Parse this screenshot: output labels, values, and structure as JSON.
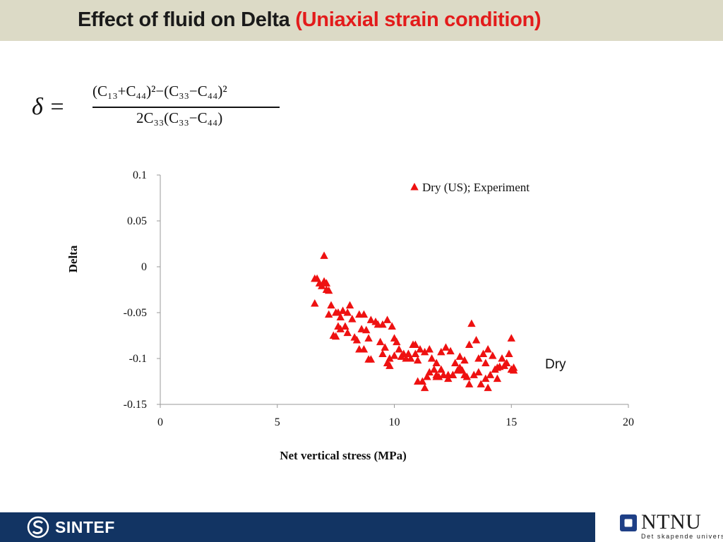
{
  "title": {
    "main": "Effect of fluid on Delta",
    "highlight": "(Uniaxial strain condition)"
  },
  "formula": {
    "lhs": "δ =",
    "numerator": "(C₁₃+C₄₄)²−(C₃₃−C₄₄)²",
    "denominator": "2C₃₃(C₃₃−C₄₄)"
  },
  "chart_data": {
    "type": "scatter",
    "title": "",
    "xlabel": "Net vertical stress (MPa)",
    "ylabel": "Delta",
    "xlim": [
      0,
      20
    ],
    "ylim": [
      -0.15,
      0.1
    ],
    "xticks": [
      0,
      5,
      10,
      15,
      20
    ],
    "xtick_labels": [
      "0",
      "5",
      "10",
      "15",
      "20"
    ],
    "yticks": [
      0.1,
      0.05,
      0,
      -0.05,
      -0.1,
      -0.15
    ],
    "ytick_labels": [
      "0.1",
      "0.05",
      "0",
      "-0.05",
      "-0.1",
      "-0.15"
    ],
    "grid": false,
    "legend_position": "top-right",
    "marker": "triangle",
    "marker_color": "#ee1111",
    "annotation": "Dry",
    "series": [
      {
        "name": "Dry (US); Experiment",
        "x": [
          6.6,
          6.7,
          6.8,
          6.9,
          7.0,
          7.0,
          7.1,
          7.2,
          7.1,
          7.3,
          7.6,
          6.6,
          7.2,
          7.4,
          7.5,
          7.7,
          7.8,
          8.0,
          7.9,
          7.6,
          8.1,
          8.2,
          8.5,
          8.4,
          8.7,
          8.8,
          8.0,
          8.3,
          8.6,
          7.7,
          7.5,
          8.9,
          9.0,
          9.2,
          9.3,
          9.5,
          9.7,
          9.9,
          10.0,
          10.1,
          9.4,
          9.6,
          9.8,
          8.9,
          8.5,
          9.0,
          8.7,
          9.5,
          10.2,
          10.4,
          10.6,
          10.8,
          10.9,
          11.1,
          11.3,
          11.5,
          11.6,
          11.8,
          12.0,
          12.2,
          12.4,
          12.6,
          12.8,
          13.0,
          13.2,
          13.3,
          13.5,
          13.6,
          13.8,
          13.9,
          14.0,
          14.2,
          14.4,
          14.6,
          14.8,
          14.9,
          15.0,
          15.1,
          15.0,
          14.7,
          14.5,
          14.3,
          14.1,
          13.9,
          13.7,
          13.4,
          13.1,
          12.9,
          12.7,
          12.5,
          12.3,
          12.1,
          11.9,
          11.7,
          11.4,
          11.2,
          11.0,
          10.7,
          10.5,
          10.3,
          9.8,
          10.0,
          10.6,
          11.3,
          11.8,
          12.3,
          12.8,
          13.2,
          13.6,
          14.0,
          14.4,
          15.1,
          12.0,
          12.5,
          13.0,
          11.5,
          11.0,
          9.7,
          10.9,
          11.8
        ],
        "y": [
          -0.013,
          -0.013,
          -0.018,
          -0.021,
          0.012,
          -0.016,
          -0.018,
          -0.026,
          -0.025,
          -0.042,
          -0.05,
          -0.04,
          -0.052,
          -0.075,
          -0.076,
          -0.055,
          -0.048,
          -0.05,
          -0.065,
          -0.065,
          -0.042,
          -0.057,
          -0.052,
          -0.08,
          -0.052,
          -0.069,
          -0.072,
          -0.077,
          -0.068,
          -0.068,
          -0.05,
          -0.078,
          -0.058,
          -0.06,
          -0.063,
          -0.063,
          -0.058,
          -0.065,
          -0.078,
          -0.082,
          -0.082,
          -0.088,
          -0.1,
          -0.101,
          -0.09,
          -0.101,
          -0.09,
          -0.095,
          -0.09,
          -0.095,
          -0.095,
          -0.085,
          -0.085,
          -0.09,
          -0.093,
          -0.09,
          -0.1,
          -0.105,
          -0.093,
          -0.088,
          -0.092,
          -0.105,
          -0.098,
          -0.102,
          -0.085,
          -0.062,
          -0.08,
          -0.1,
          -0.095,
          -0.105,
          -0.09,
          -0.097,
          -0.11,
          -0.1,
          -0.105,
          -0.095,
          -0.078,
          -0.11,
          -0.112,
          -0.108,
          -0.109,
          -0.112,
          -0.118,
          -0.122,
          -0.128,
          -0.118,
          -0.12,
          -0.113,
          -0.113,
          -0.118,
          -0.118,
          -0.118,
          -0.12,
          -0.112,
          -0.12,
          -0.125,
          -0.102,
          -0.1,
          -0.1,
          -0.098,
          -0.108,
          -0.097,
          -0.095,
          -0.132,
          -0.12,
          -0.122,
          -0.11,
          -0.128,
          -0.115,
          -0.132,
          -0.122,
          -0.113,
          -0.112,
          -0.118,
          -0.118,
          -0.115,
          -0.125,
          -0.105,
          -0.095,
          -0.118
        ]
      }
    ]
  },
  "footer": {
    "left_logo_text": "SINTEF",
    "right_logo_text": "NTNU",
    "right_logo_sub": "Det skapende universitet"
  }
}
